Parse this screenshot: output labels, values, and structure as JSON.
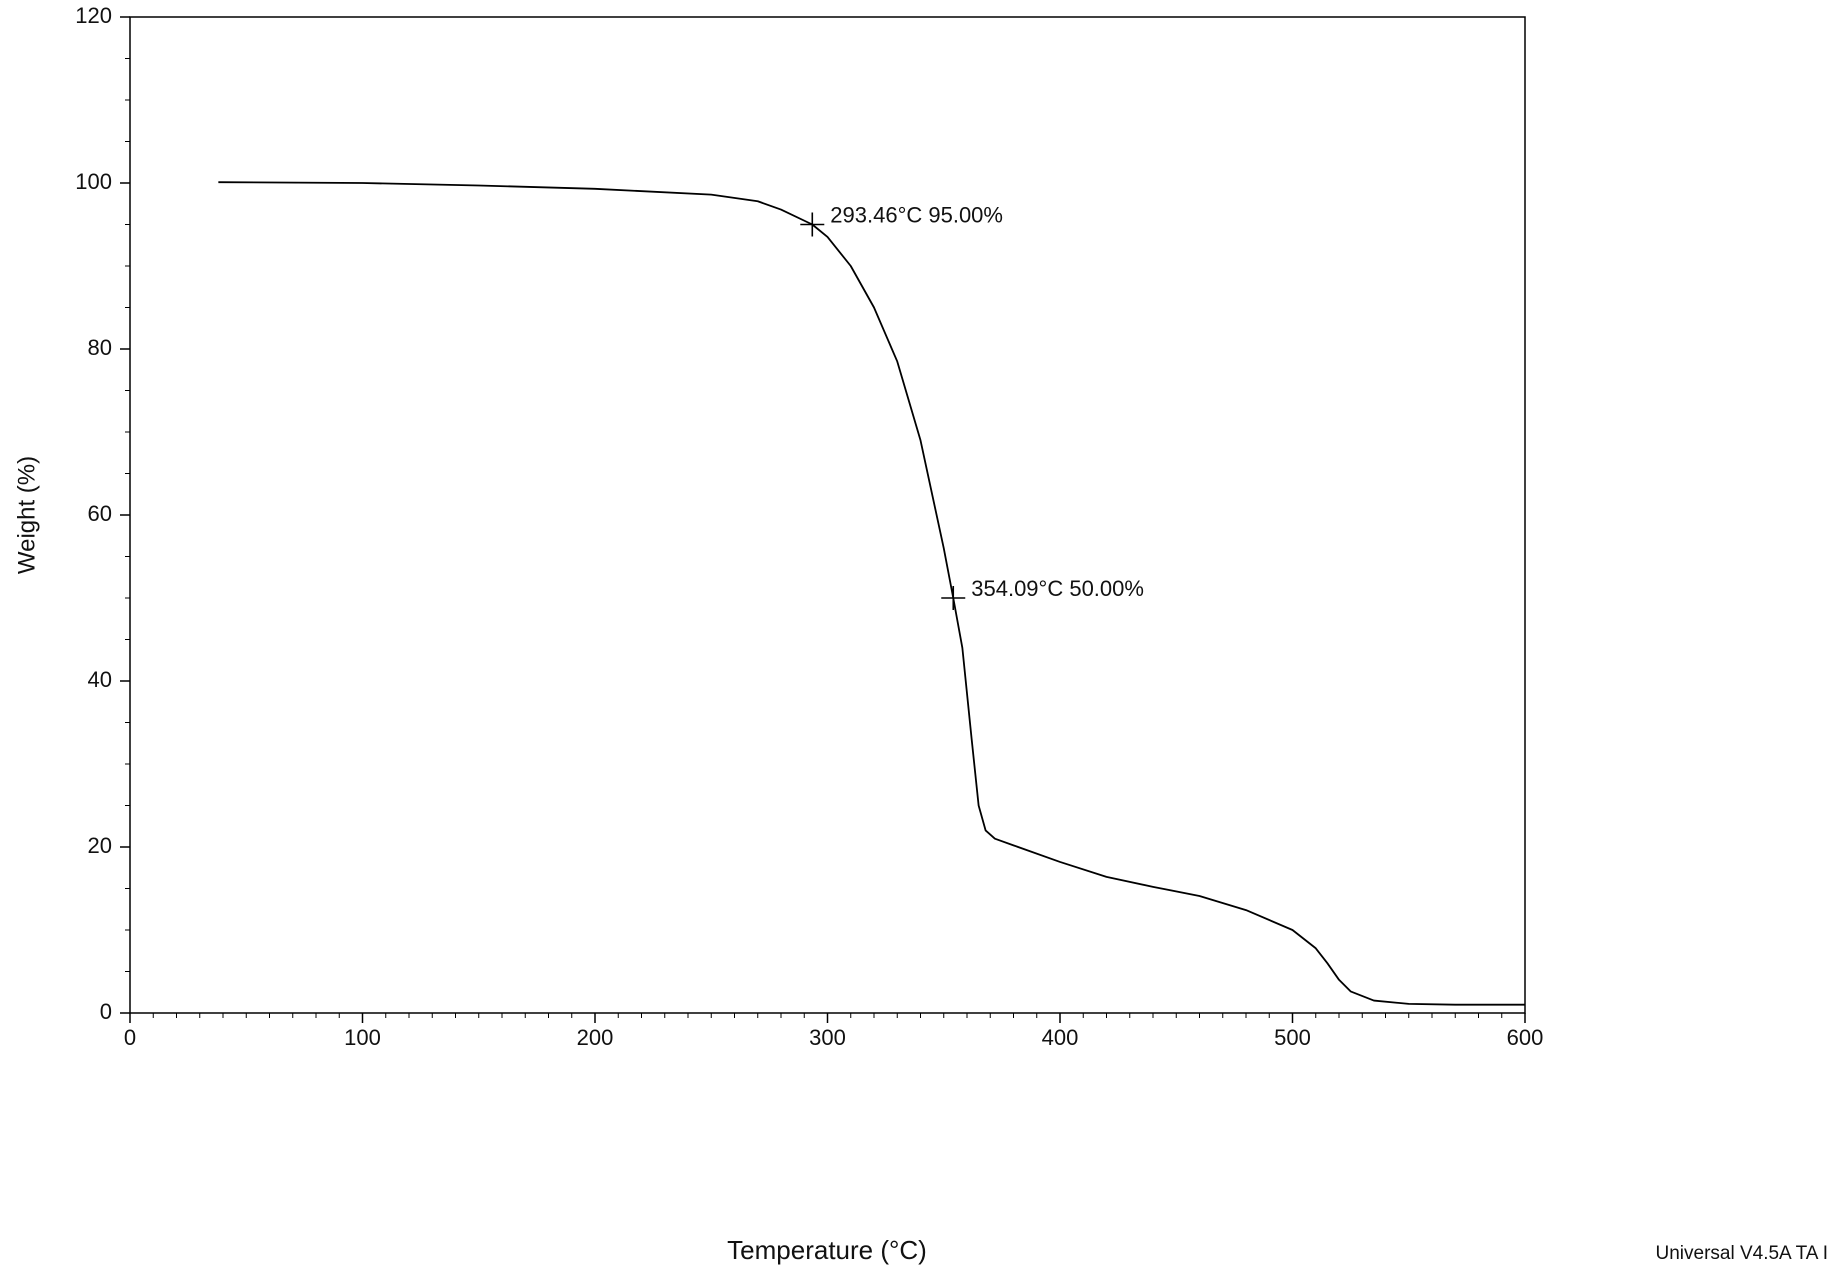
{
  "chart_data": {
    "type": "line",
    "xlabel": "Temperature (°C)",
    "ylabel": "Weight (%)",
    "footer": "Universal V4.5A TA I",
    "xlim": [
      0,
      600
    ],
    "xticks": [
      0,
      100,
      200,
      300,
      400,
      500,
      600
    ],
    "ylim": [
      0,
      120
    ],
    "yticks": [
      0,
      20,
      40,
      60,
      80,
      100,
      120
    ],
    "series": [
      {
        "color": "#000000",
        "x": [
          38,
          100,
          150,
          200,
          250,
          270,
          280,
          293.46,
          300,
          310,
          320,
          330,
          340,
          350,
          354.09,
          358,
          362,
          365,
          368,
          372,
          380,
          400,
          420,
          440,
          460,
          480,
          500,
          510,
          515,
          520,
          525,
          535,
          550,
          570,
          600
        ],
        "values": [
          100.1,
          100,
          99.7,
          99.3,
          98.6,
          97.8,
          96.8,
          95,
          93.5,
          90,
          85,
          78.5,
          69,
          56,
          50,
          44,
          33,
          25,
          22,
          21,
          20.2,
          18.2,
          16.4,
          15.2,
          14.1,
          12.4,
          10,
          7.8,
          6,
          4,
          2.6,
          1.5,
          1.1,
          1.0,
          1.0
        ]
      }
    ],
    "annotations": [
      {
        "x": 293.46,
        "y": 95.0,
        "label": "293.46°C 95.00%"
      },
      {
        "x": 354.09,
        "y": 50.0,
        "label": "354.09°C 50.00%"
      }
    ]
  }
}
